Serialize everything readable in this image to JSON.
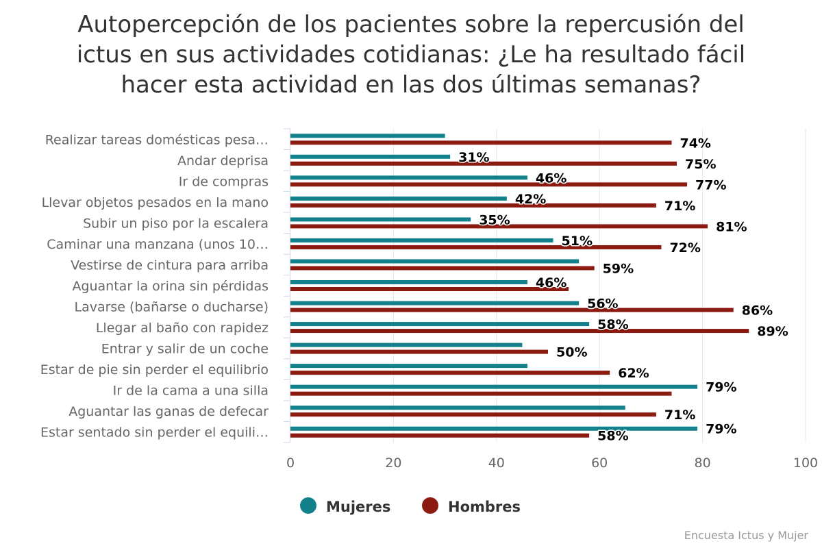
{
  "chart_data": {
    "type": "bar",
    "orientation": "horizontal",
    "title_lines": [
      "Autopercepción de los pacientes sobre la repercusión del",
      "ictus en sus actividades cotidianas: ¿Le ha resultado fácil",
      "hacer esta actividad en las dos últimas semanas?"
    ],
    "categories": [
      "Realizar tareas domésticas pesa…",
      "Andar deprisa",
      "Ir de compras",
      "Llevar objetos pesados en la mano",
      "Subir un piso por la escalera",
      "Caminar una manzana (unos 10…",
      "Vestirse de cintura para arriba",
      "Aguantar la orina sin pérdidas",
      "Lavarse (bañarse o ducharse)",
      "Llegar al baño con rapidez",
      "Entrar y salir de un coche",
      "Estar de pie sin perder el equilibrio",
      "Ir de la cama a una silla",
      "Aguantar las ganas de defecar",
      "Estar sentado sin perder el equili…"
    ],
    "series": [
      {
        "name": "Mujeres",
        "color": "#13818c",
        "values": [
          30,
          31,
          46,
          42,
          35,
          51,
          56,
          46,
          56,
          58,
          45,
          46,
          79,
          65,
          79
        ],
        "labels": [
          "",
          "31%",
          "46%",
          "42%",
          "35%",
          "51%",
          "",
          "46%",
          "56%",
          "58%",
          "",
          "",
          "79%",
          "",
          "79%"
        ]
      },
      {
        "name": "Hombres",
        "color": "#8b1a10",
        "values": [
          74,
          75,
          77,
          71,
          81,
          72,
          59,
          54,
          86,
          89,
          50,
          62,
          74,
          71,
          58
        ],
        "labels": [
          "74%",
          "75%",
          "77%",
          "71%",
          "81%",
          "72%",
          "59%",
          "",
          "86%",
          "89%",
          "50%",
          "62%",
          "",
          "71%",
          "58%"
        ]
      }
    ],
    "x_ticks": [
      "0",
      "20",
      "40",
      "60",
      "80",
      "100"
    ],
    "xlim": [
      0,
      100
    ],
    "grid": true,
    "legend_position": "bottom-center"
  },
  "credit": "Encuesta Ictus y Mujer"
}
